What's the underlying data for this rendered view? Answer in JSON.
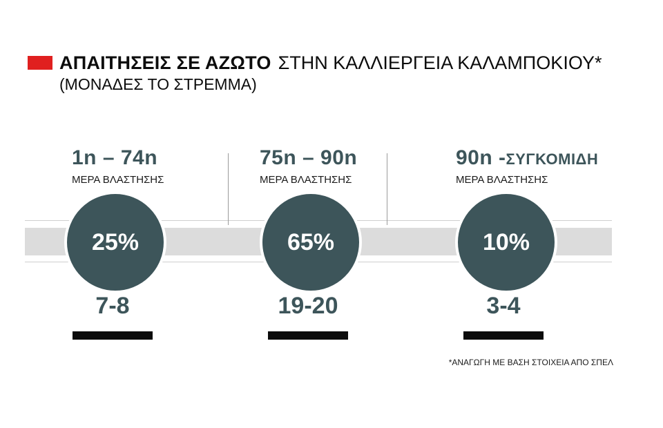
{
  "title": {
    "bold": "ΑΠΑΙΤΗΣΕΙΣ ΣΕ ΑΖΩΤΟ",
    "rest": "ΣΤΗΝ ΚΑΛΛΙΕΡΓΕΙΑ ΚΑΛΑΜΠΟΚΙΟΥ*",
    "subtitle": "(ΜΟΝΑΔΕΣ ΤΟ ΣΤΡΕΜΜΑ)",
    "accent_color": "#e0201f"
  },
  "phases": [
    {
      "range": "1n – 74n",
      "suffix": "",
      "sub": "ΜΕΡΑ ΒΛΑΣΤΗΣΗΣ",
      "percent": "25%",
      "units": "7-8"
    },
    {
      "range": "75n – 90n",
      "suffix": "",
      "sub": "ΜΕΡΑ ΒΛΑΣΤΗΣΗΣ",
      "percent": "65%",
      "units": "19-20"
    },
    {
      "range": "90n -",
      "suffix": "ΣΥΓΚΟΜΙΔΗ",
      "sub": "ΜΕΡΑ ΒΛΑΣΤΗΣΗΣ",
      "percent": "10%",
      "units": "3-4"
    }
  ],
  "circle_color": "#3d555a",
  "footnote": "*ΑΝΑΓΩΓΗ ΜΕ ΒΑΣΗ ΣΤΟΙΧΕΙΑ ΑΠΟ ΣΠΕΛ"
}
